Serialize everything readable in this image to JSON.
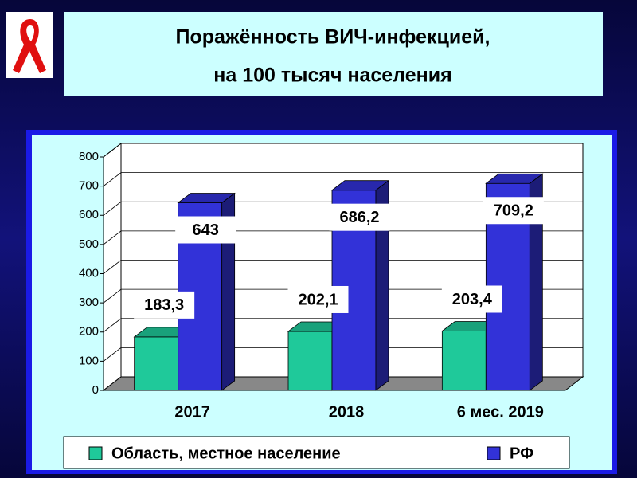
{
  "chart_data": {
    "type": "bar3d",
    "title": [
      "Поражённость ВИЧ-инфекцией,",
      "на 100 тысяч населения"
    ],
    "categories": [
      "2017",
      "2018",
      "6 мес. 2019"
    ],
    "series": [
      {
        "name": "Область, местное население",
        "color": "#1fc99a",
        "values": [
          183.3,
          202.1,
          203.4
        ],
        "value_labels": [
          "183,3",
          "202,1",
          "203,4"
        ]
      },
      {
        "name": "РФ",
        "color": "#3232d8",
        "values": [
          643,
          686.2,
          709.2
        ],
        "value_labels": [
          "643",
          "686,2",
          "709,2"
        ]
      }
    ],
    "ylim": [
      0,
      800
    ],
    "yticks": [
      0,
      100,
      200,
      300,
      400,
      500,
      600,
      700,
      800
    ],
    "grid": true
  }
}
